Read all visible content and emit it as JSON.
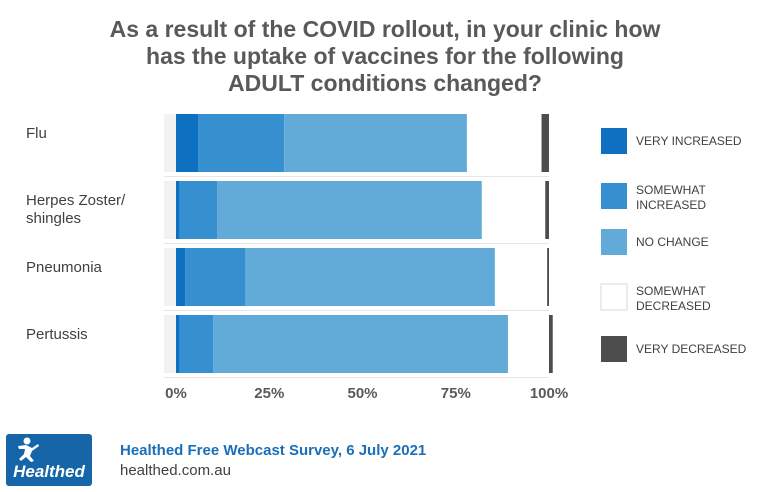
{
  "title_lines": [
    "As a result of the COVID rollout, in your clinic how",
    "has the uptake of vaccines for the following",
    "ADULT conditions changed?"
  ],
  "chart_data": {
    "type": "bar",
    "orientation": "horizontal",
    "stacked": true,
    "categories": [
      "Flu",
      "Herpes Zoster/ shingles",
      "Pneumonia",
      "Pertussis"
    ],
    "category_lines": [
      [
        "Flu"
      ],
      [
        "Herpes Zoster/",
        "shingles"
      ],
      [
        "Pneumonia"
      ],
      [
        "Pertussis"
      ]
    ],
    "series": [
      {
        "name": "VERY INCREASED",
        "name_lines": [
          "VERY INCREASED"
        ],
        "color": "#0d70c0",
        "values": [
          6,
          1,
          2.5,
          1
        ]
      },
      {
        "name": "SOMEWHAT INCREASED",
        "name_lines": [
          "SOMEWHAT",
          "INCREASED"
        ],
        "color": "#3690cf",
        "values": [
          23,
          10,
          16,
          9
        ]
      },
      {
        "name": "NO CHANGE",
        "name_lines": [
          "NO CHANGE"
        ],
        "color": "#62aad8",
        "values": [
          49,
          71,
          67,
          79
        ]
      },
      {
        "name": "SOMEWHAT DECREASED",
        "name_lines": [
          "SOMEWHAT",
          "DECREASED"
        ],
        "color": "#ffffff",
        "values": [
          20,
          17,
          14,
          11
        ]
      },
      {
        "name": "VERY DECREASED",
        "name_lines": [
          "VERY DECREASED"
        ],
        "color": "#4d4d4d",
        "values": [
          2,
          1,
          0.5,
          1
        ]
      }
    ],
    "x_ticks": [
      0,
      25,
      50,
      75,
      100
    ],
    "x_tick_labels": [
      "0%",
      "25%",
      "50%",
      "75%",
      "100%"
    ],
    "xlim": [
      0,
      100
    ],
    "legend_position": "right",
    "grid": false
  },
  "footer": {
    "source": "Healthed Free Webcast Survey, 6 July 2021",
    "url": "healthed.com.au",
    "logo_text": "Healthed"
  }
}
